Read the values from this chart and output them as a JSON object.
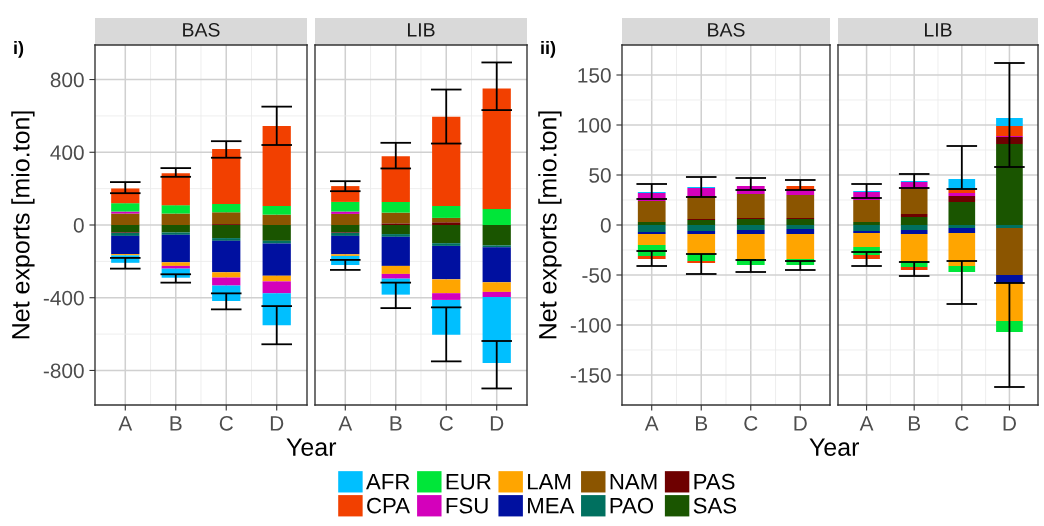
{
  "chart_data": [
    {
      "type": "bar",
      "stacked": true,
      "title": "BAS",
      "ylabel": "Net exports [mio.ton]",
      "xlabel": "Year",
      "annotations": [
        "i)"
      ],
      "categories": [
        "A",
        "B",
        "C",
        "D"
      ],
      "ylim": [
        -990,
        990
      ],
      "yticks": [
        -800,
        -400,
        0,
        400,
        800
      ],
      "grid": true,
      "legend": "bottom",
      "series": [
        {
          "name": "SAS",
          "color": "#1a5500",
          "values": [
            -39,
            -41,
            -72,
            -87
          ]
        },
        {
          "name": "PAS",
          "color": "#6e0000",
          "values": [
            -4,
            null,
            5,
            null
          ]
        },
        {
          "name": "PAO",
          "color": "#00705f",
          "values": [
            -17,
            -13,
            -15,
            -15
          ]
        },
        {
          "name": "NAM",
          "color": "#8b5500",
          "values": [
            63,
            63,
            65,
            57
          ]
        },
        {
          "name": "MEA",
          "color": "#0010a0",
          "values": [
            -100,
            -151,
            -173,
            -177
          ]
        },
        {
          "name": "LAM",
          "color": "#ffa500",
          "values": [
            -7,
            -20,
            -29,
            -31
          ]
        },
        {
          "name": "FSU",
          "color": "#d400bb",
          "values": [
            11,
            -15,
            -44,
            -66
          ]
        },
        {
          "name": "EUR",
          "color": "#00e639",
          "values": [
            46,
            46,
            46,
            48
          ]
        },
        {
          "name": "CPA",
          "color": "#f24000",
          "values": [
            81,
            175,
            302,
            440
          ],
          "errors": [
            [
              175,
              236
            ],
            [
              265,
              313
            ],
            [
              370,
              461
            ],
            [
              440,
              651
            ]
          ]
        },
        {
          "name": "AFR",
          "color": "#00bfff",
          "values": [
            -41,
            -50,
            -85,
            -175
          ],
          "errors": [
            [
              -240,
              -181
            ],
            [
              -317,
              -271
            ],
            [
              -464,
              -376
            ],
            [
              -656,
              -446
            ]
          ]
        }
      ]
    },
    {
      "type": "bar",
      "stacked": true,
      "title": "LIB",
      "categories": [
        "A",
        "B",
        "C",
        "D"
      ],
      "ylim": [
        -990,
        990
      ],
      "yticks": [
        -800,
        -400,
        0,
        400,
        800
      ],
      "grid": true,
      "tick_labels": "x",
      "legend": "bottom",
      "series": [
        {
          "name": "SAS",
          "color": "#1a5500",
          "values": [
            -39,
            -50,
            -100,
            -112
          ]
        },
        {
          "name": "PAS",
          "color": "#6e0000",
          "values": [
            -4,
            9,
            15,
            null
          ]
        },
        {
          "name": "PAO",
          "color": "#00705f",
          "values": [
            -17,
            -15,
            -15,
            -11
          ]
        },
        {
          "name": "NAM",
          "color": "#8b5500",
          "values": [
            61,
            59,
            24,
            null
          ]
        },
        {
          "name": "MEA",
          "color": "#0010a0",
          "values": [
            -101,
            -160,
            -184,
            -192
          ]
        },
        {
          "name": "LAM",
          "color": "#ffa500",
          "values": [
            -9,
            -44,
            -76,
            -53
          ]
        },
        {
          "name": "FSU",
          "color": "#d400bb",
          "values": [
            13,
            -26,
            -37,
            -28
          ]
        },
        {
          "name": "EUR",
          "color": "#00e639",
          "values": [
            53,
            59,
            66,
            88
          ]
        },
        {
          "name": "CPA",
          "color": "#f24000",
          "values": [
            87,
            251,
            490,
            663
          ],
          "errors": [
            [
              186,
              241
            ],
            [
              311,
              452
            ],
            [
              448,
              745
            ],
            [
              632,
              894
            ]
          ]
        },
        {
          "name": "AFR",
          "color": "#00bfff",
          "values": [
            -50,
            -88,
            -192,
            -363
          ],
          "errors": [
            [
              -247,
              -192
            ],
            [
              -457,
              -317
            ],
            [
              -750,
              -453
            ],
            [
              -899,
              -638
            ]
          ]
        }
      ]
    },
    {
      "type": "bar",
      "stacked": true,
      "title": "BAS",
      "ylabel": "Net exports [mio.ton]",
      "xlabel": "Year",
      "annotations": [
        "ii)"
      ],
      "categories": [
        "A",
        "B",
        "C",
        "D"
      ],
      "ylim": [
        -180,
        180
      ],
      "yticks": [
        -150,
        -100,
        -50,
        0,
        50,
        100,
        150
      ],
      "grid": true,
      "legend": "bottom",
      "series": [
        {
          "name": "SAS",
          "color": "#1a5500",
          "values": [
            3,
            5,
            6,
            6
          ]
        },
        {
          "name": "PAS",
          "color": "#6e0000",
          "values": [
            null,
            1,
            1,
            1
          ]
        },
        {
          "name": "PAO",
          "color": "#00705f",
          "values": [
            -7,
            -6,
            -5,
            -4
          ]
        },
        {
          "name": "NAM",
          "color": "#8b5500",
          "values": [
            21,
            23,
            24,
            23
          ]
        },
        {
          "name": "MEA",
          "color": "#0010a0",
          "values": [
            -2,
            -3,
            -4,
            -5
          ]
        },
        {
          "name": "LAM",
          "color": "#ffa500",
          "values": [
            -11,
            -20,
            -25,
            -25
          ]
        },
        {
          "name": "FSU",
          "color": "#d400bb",
          "values": [
            8,
            8,
            8,
            5
          ],
          "errors": [
            null,
            null,
            [
              35,
              47
            ],
            null
          ]
        },
        {
          "name": "EUR",
          "color": "#00e639",
          "values": [
            -11,
            -7,
            -6,
            -6
          ],
          "errors": [
            null,
            null,
            [
              -47,
              -35
            ],
            [
              -45,
              -36
            ]
          ]
        },
        {
          "name": "CPA",
          "color": "#f24000",
          "values": [
            -3,
            -2,
            null,
            4
          ],
          "errors": [
            [
              -41,
              -26
            ],
            [
              -49,
              -29
            ],
            null,
            [
              35,
              45
            ]
          ]
        },
        {
          "name": "AFR",
          "color": "#00bfff",
          "values": [
            1,
            1,
            null,
            null
          ],
          "errors": [
            [
              26,
              41
            ],
            [
              28,
              48
            ],
            null,
            null
          ]
        }
      ]
    },
    {
      "type": "bar",
      "stacked": true,
      "title": "LIB",
      "categories": [
        "A",
        "B",
        "C",
        "D"
      ],
      "ylim": [
        -180,
        180
      ],
      "yticks": [
        -150,
        -100,
        -50,
        0,
        50,
        100,
        150
      ],
      "grid": true,
      "tick_labels": "x",
      "legend": "bottom",
      "series": [
        {
          "name": "SAS",
          "color": "#1a5500",
          "values": [
            3,
            8,
            23,
            81
          ]
        },
        {
          "name": "PAS",
          "color": "#6e0000",
          "values": [
            null,
            3,
            6,
            7
          ]
        },
        {
          "name": "PAO",
          "color": "#00705f",
          "values": [
            -6,
            -5,
            -3,
            -3
          ]
        },
        {
          "name": "NAM",
          "color": "#8b5500",
          "values": [
            22,
            25,
            null,
            -47
          ]
        },
        {
          "name": "MEA",
          "color": "#0010a0",
          "values": [
            -2,
            -4,
            -5,
            -8
          ]
        },
        {
          "name": "LAM",
          "color": "#ffa500",
          "values": [
            -14,
            -27,
            -33,
            -38
          ]
        },
        {
          "name": "FSU",
          "color": "#d400bb",
          "values": [
            8,
            7,
            3,
            1
          ]
        },
        {
          "name": "EUR",
          "color": "#00e639",
          "values": [
            -8,
            -6,
            -6,
            -11
          ],
          "errors": [
            null,
            null,
            [
              -79,
              -36
            ],
            [
              -162,
              -58
            ]
          ]
        },
        {
          "name": "CPA",
          "color": "#f24000",
          "values": [
            -4,
            -3,
            3,
            10
          ],
          "errors": [
            [
              -41,
              -27
            ],
            [
              -51,
              -37
            ],
            null,
            null
          ]
        },
        {
          "name": "AFR",
          "color": "#00bfff",
          "values": [
            1,
            1,
            11,
            8
          ],
          "errors": [
            [
              27,
              41
            ],
            [
              37,
              51
            ],
            [
              36,
              79
            ],
            [
              58,
              162
            ]
          ]
        }
      ]
    }
  ]
}
